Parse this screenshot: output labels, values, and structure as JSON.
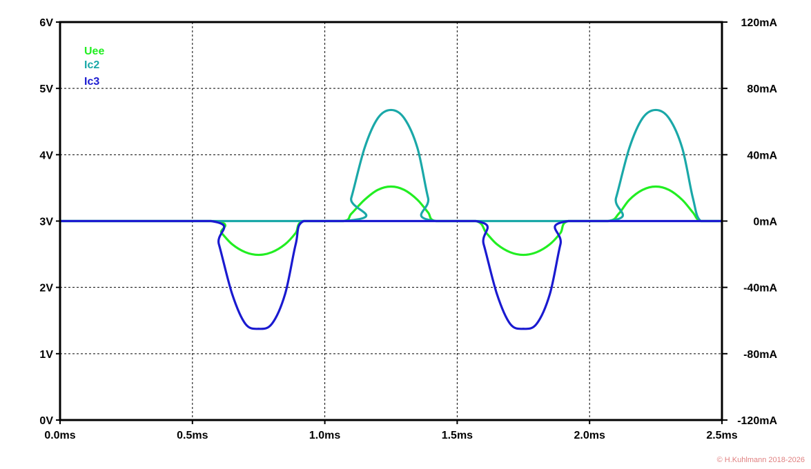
{
  "chart_data": {
    "type": "line",
    "x_ticks": [
      "0.0ms",
      "0.5ms",
      "1.0ms",
      "1.5ms",
      "2.0ms",
      "2.5ms"
    ],
    "xlim": [
      0,
      2.5
    ],
    "y_left_ticks": [
      "0V",
      "1V",
      "2V",
      "3V",
      "4V",
      "5V",
      "6V"
    ],
    "ylim_left": [
      0,
      6
    ],
    "y_right_ticks": [
      "-120mA",
      "-80mA",
      "-40mA",
      "0mA",
      "40mA",
      "80mA",
      "120mA"
    ],
    "ylim_right": [
      -120,
      120
    ],
    "grid": true,
    "legend_position": "top-left",
    "x_unit": "ms",
    "series": [
      {
        "name": "Uee",
        "axis": "left",
        "color": "#22ee22",
        "x": [
          0.0,
          0.57,
          0.61,
          0.65,
          0.7,
          0.75,
          0.8,
          0.85,
          0.89,
          0.92,
          1.07,
          1.1,
          1.15,
          1.2,
          1.25,
          1.3,
          1.35,
          1.39,
          1.42,
          1.57,
          1.61,
          1.65,
          1.7,
          1.75,
          1.8,
          1.85,
          1.89,
          1.92,
          2.07,
          2.11,
          2.15,
          2.2,
          2.25,
          2.3,
          2.35,
          2.39,
          2.42,
          2.5
        ],
        "values": [
          3.0,
          3.0,
          2.82,
          2.65,
          2.53,
          2.49,
          2.53,
          2.65,
          2.82,
          3.0,
          3.0,
          3.11,
          3.32,
          3.47,
          3.52,
          3.47,
          3.32,
          3.13,
          3.0,
          3.0,
          2.82,
          2.65,
          2.53,
          2.49,
          2.53,
          2.65,
          2.82,
          3.0,
          3.0,
          3.11,
          3.32,
          3.47,
          3.52,
          3.47,
          3.32,
          3.13,
          3.0,
          3.0
        ]
      },
      {
        "name": "Ic2",
        "axis": "right",
        "color": "#1aa8a8",
        "x": [
          0.0,
          1.07,
          1.1,
          1.15,
          1.2,
          1.25,
          1.3,
          1.35,
          1.39,
          1.42,
          2.07,
          2.1,
          2.15,
          2.2,
          2.25,
          2.3,
          2.35,
          2.39,
          2.42,
          2.5
        ],
        "values": [
          0,
          0,
          14,
          44,
          62,
          67,
          62,
          44,
          14,
          0,
          0,
          14,
          44,
          62,
          67,
          62,
          44,
          14,
          0,
          0
        ]
      },
      {
        "name": "Ic3",
        "axis": "right",
        "color": "#1a1ad0",
        "x": [
          0.0,
          0.57,
          0.6,
          0.65,
          0.7,
          0.75,
          0.8,
          0.85,
          0.89,
          0.92,
          1.07,
          1.57,
          1.6,
          1.65,
          1.7,
          1.75,
          1.8,
          1.85,
          1.89,
          1.92,
          2.5
        ],
        "values": [
          0,
          0,
          -14,
          -44,
          -62,
          -65,
          -62,
          -44,
          -14,
          0,
          0,
          0,
          -14,
          -44,
          -62,
          -65,
          -62,
          -44,
          -14,
          0,
          0
        ]
      }
    ],
    "copyright": "© H.Kuhlmann 2018-2026",
    "copyright_color": "#e08080"
  }
}
